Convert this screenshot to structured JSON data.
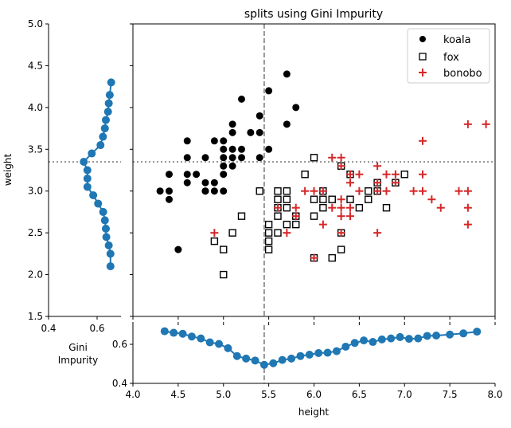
{
  "chart_data": [
    {
      "type": "scatter",
      "title": "splits using Gini Impurity",
      "xlabel": "",
      "ylabel": "weight",
      "xlim": [
        4.0,
        8.0
      ],
      "ylim": [
        1.5,
        5.0
      ],
      "yticks": [
        "1.5",
        "2.0",
        "2.5",
        "3.0",
        "3.5",
        "4.0",
        "4.5",
        "5.0"
      ],
      "ytick_values": [
        1.5,
        2.0,
        2.5,
        3.0,
        3.5,
        4.0,
        4.5,
        5.0
      ],
      "xtick_values": [
        4.0,
        4.5,
        5.0,
        5.5,
        6.0,
        6.5,
        7.0,
        7.5,
        8.0
      ],
      "legend_position": "top-right",
      "split_x": 5.45,
      "split_y": 3.35,
      "series": [
        {
          "name": "koala",
          "marker": "circle",
          "color": "#000000",
          "points": [
            [
              4.3,
              3.0
            ],
            [
              4.4,
              3.0
            ],
            [
              4.4,
              2.9
            ],
            [
              4.4,
              3.2
            ],
            [
              4.5,
              2.3
            ],
            [
              4.6,
              3.6
            ],
            [
              4.6,
              3.4
            ],
            [
              4.6,
              3.2
            ],
            [
              4.6,
              3.1
            ],
            [
              4.7,
              3.2
            ],
            [
              4.8,
              3.4
            ],
            [
              4.8,
              3.1
            ],
            [
              4.8,
              3.0
            ],
            [
              4.8,
              3.0
            ],
            [
              4.9,
              3.6
            ],
            [
              4.9,
              3.1
            ],
            [
              4.9,
              3.0
            ],
            [
              5.0,
              3.6
            ],
            [
              5.0,
              3.5
            ],
            [
              5.0,
              3.4
            ],
            [
              5.0,
              3.3
            ],
            [
              5.0,
              3.2
            ],
            [
              5.0,
              3.0
            ],
            [
              5.1,
              3.8
            ],
            [
              5.1,
              3.7
            ],
            [
              5.1,
              3.5
            ],
            [
              5.1,
              3.4
            ],
            [
              5.1,
              3.3
            ],
            [
              5.2,
              4.1
            ],
            [
              5.2,
              3.5
            ],
            [
              5.2,
              3.4
            ],
            [
              5.3,
              3.7
            ],
            [
              5.4,
              3.9
            ],
            [
              5.4,
              3.7
            ],
            [
              5.4,
              3.4
            ],
            [
              5.5,
              4.2
            ],
            [
              5.5,
              3.5
            ],
            [
              5.7,
              4.4
            ],
            [
              5.7,
              3.8
            ],
            [
              5.8,
              4.0
            ]
          ]
        },
        {
          "name": "fox",
          "marker": "square",
          "color": "#000000",
          "points": [
            [
              4.9,
              2.4
            ],
            [
              5.0,
              2.0
            ],
            [
              5.0,
              2.3
            ],
            [
              5.1,
              2.5
            ],
            [
              5.2,
              2.7
            ],
            [
              5.4,
              3.0
            ],
            [
              5.5,
              2.3
            ],
            [
              5.5,
              2.4
            ],
            [
              5.5,
              2.5
            ],
            [
              5.5,
              2.6
            ],
            [
              5.6,
              2.5
            ],
            [
              5.6,
              2.7
            ],
            [
              5.6,
              2.8
            ],
            [
              5.6,
              2.9
            ],
            [
              5.6,
              3.0
            ],
            [
              5.7,
              2.6
            ],
            [
              5.7,
              2.8
            ],
            [
              5.7,
              2.9
            ],
            [
              5.7,
              3.0
            ],
            [
              5.8,
              2.6
            ],
            [
              5.8,
              2.7
            ],
            [
              5.9,
              3.2
            ],
            [
              6.0,
              2.2
            ],
            [
              6.0,
              2.7
            ],
            [
              6.0,
              2.9
            ],
            [
              6.0,
              3.4
            ],
            [
              6.1,
              2.8
            ],
            [
              6.1,
              2.9
            ],
            [
              6.1,
              3.0
            ],
            [
              6.2,
              2.2
            ],
            [
              6.2,
              2.9
            ],
            [
              6.3,
              2.3
            ],
            [
              6.3,
              2.5
            ],
            [
              6.3,
              3.3
            ],
            [
              6.4,
              2.9
            ],
            [
              6.4,
              3.2
            ],
            [
              6.5,
              2.8
            ],
            [
              6.6,
              2.9
            ],
            [
              6.6,
              3.0
            ],
            [
              6.7,
              3.1
            ],
            [
              6.7,
              3.0
            ],
            [
              6.8,
              2.8
            ],
            [
              6.9,
              3.1
            ],
            [
              7.0,
              3.2
            ]
          ]
        },
        {
          "name": "bonobo",
          "marker": "plus",
          "color": "#d62728",
          "points": [
            [
              4.9,
              2.5
            ],
            [
              5.6,
              2.8
            ],
            [
              5.7,
              2.5
            ],
            [
              5.8,
              2.8
            ],
            [
              5.8,
              2.7
            ],
            [
              5.9,
              3.0
            ],
            [
              6.0,
              2.2
            ],
            [
              6.0,
              3.0
            ],
            [
              6.1,
              2.6
            ],
            [
              6.1,
              3.0
            ],
            [
              6.2,
              3.4
            ],
            [
              6.2,
              2.8
            ],
            [
              6.3,
              3.4
            ],
            [
              6.3,
              3.3
            ],
            [
              6.3,
              2.9
            ],
            [
              6.3,
              2.8
            ],
            [
              6.3,
              2.7
            ],
            [
              6.3,
              2.5
            ],
            [
              6.4,
              3.2
            ],
            [
              6.4,
              3.1
            ],
            [
              6.4,
              2.8
            ],
            [
              6.4,
              2.7
            ],
            [
              6.5,
              3.2
            ],
            [
              6.5,
              3.0
            ],
            [
              6.7,
              3.3
            ],
            [
              6.7,
              3.1
            ],
            [
              6.7,
              3.0
            ],
            [
              6.7,
              2.5
            ],
            [
              6.8,
              3.2
            ],
            [
              6.8,
              3.0
            ],
            [
              6.9,
              3.2
            ],
            [
              6.9,
              3.1
            ],
            [
              7.1,
              3.0
            ],
            [
              7.2,
              3.6
            ],
            [
              7.2,
              3.2
            ],
            [
              7.2,
              3.0
            ],
            [
              7.3,
              2.9
            ],
            [
              7.4,
              2.8
            ],
            [
              7.6,
              3.0
            ],
            [
              7.7,
              3.8
            ],
            [
              7.7,
              3.0
            ],
            [
              7.7,
              2.8
            ],
            [
              7.7,
              2.6
            ],
            [
              7.9,
              3.8
            ]
          ]
        }
      ]
    },
    {
      "type": "line",
      "panel": "left-gini-by-weight",
      "xlabel": "Gini\nImpurity",
      "xlabel_lines": [
        "Gini",
        "Impurity"
      ],
      "xlim": [
        0.4,
        0.7
      ],
      "ylim": [
        1.5,
        5.0
      ],
      "xtick_values": [
        0.4,
        0.6
      ],
      "xticks": [
        "0.4",
        "0.6"
      ],
      "color": "#1f77b4",
      "split_y": 3.35,
      "points": [
        [
          0.655,
          2.1
        ],
        [
          0.655,
          2.25
        ],
        [
          0.648,
          2.35
        ],
        [
          0.638,
          2.45
        ],
        [
          0.636,
          2.55
        ],
        [
          0.632,
          2.65
        ],
        [
          0.625,
          2.75
        ],
        [
          0.604,
          2.85
        ],
        [
          0.584,
          2.95
        ],
        [
          0.56,
          3.05
        ],
        [
          0.56,
          3.15
        ],
        [
          0.56,
          3.25
        ],
        [
          0.545,
          3.35
        ],
        [
          0.578,
          3.45
        ],
        [
          0.614,
          3.55
        ],
        [
          0.624,
          3.65
        ],
        [
          0.632,
          3.75
        ],
        [
          0.636,
          3.85
        ],
        [
          0.645,
          3.95
        ],
        [
          0.648,
          4.05
        ],
        [
          0.652,
          4.15
        ],
        [
          0.658,
          4.3
        ]
      ]
    },
    {
      "type": "line",
      "panel": "bottom-gini-by-height",
      "xlabel": "height",
      "ylabel": "",
      "xlim": [
        4.0,
        8.0
      ],
      "ylim": [
        0.4,
        0.7
      ],
      "ytick_values": [
        0.4,
        0.6
      ],
      "yticks": [
        "0.4",
        "0.6"
      ],
      "xtick_values": [
        4.0,
        4.5,
        5.0,
        5.5,
        6.0,
        6.5,
        7.0,
        7.5,
        8.0
      ],
      "xticks": [
        "4.0",
        "4.5",
        "5.0",
        "5.5",
        "6.0",
        "6.5",
        "7.0",
        "7.5",
        "8.0"
      ],
      "color": "#1f77b4",
      "split_x": 5.45,
      "points": [
        [
          4.35,
          0.667
        ],
        [
          4.45,
          0.659
        ],
        [
          4.55,
          0.654
        ],
        [
          4.65,
          0.64
        ],
        [
          4.75,
          0.63
        ],
        [
          4.85,
          0.61
        ],
        [
          4.95,
          0.602
        ],
        [
          5.05,
          0.58
        ],
        [
          5.15,
          0.54
        ],
        [
          5.25,
          0.527
        ],
        [
          5.35,
          0.517
        ],
        [
          5.45,
          0.495
        ],
        [
          5.55,
          0.503
        ],
        [
          5.65,
          0.52
        ],
        [
          5.75,
          0.527
        ],
        [
          5.85,
          0.54
        ],
        [
          5.95,
          0.547
        ],
        [
          6.05,
          0.555
        ],
        [
          6.15,
          0.557
        ],
        [
          6.25,
          0.565
        ],
        [
          6.35,
          0.588
        ],
        [
          6.45,
          0.607
        ],
        [
          6.55,
          0.62
        ],
        [
          6.65,
          0.612
        ],
        [
          6.75,
          0.625
        ],
        [
          6.85,
          0.63
        ],
        [
          6.95,
          0.637
        ],
        [
          7.05,
          0.628
        ],
        [
          7.15,
          0.63
        ],
        [
          7.25,
          0.643
        ],
        [
          7.35,
          0.645
        ],
        [
          7.5,
          0.65
        ],
        [
          7.65,
          0.656
        ],
        [
          7.8,
          0.665
        ]
      ]
    }
  ]
}
